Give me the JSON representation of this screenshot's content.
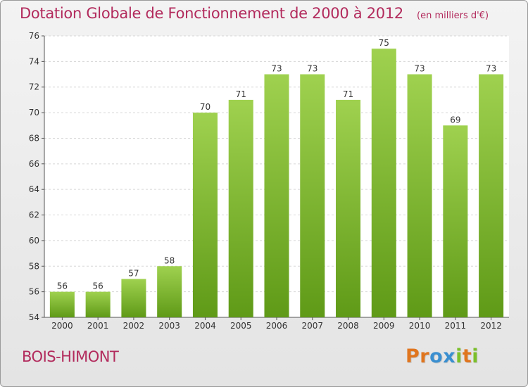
{
  "chart_data": {
    "type": "bar",
    "title": "Dotation Globale de Fonctionnement de 2000 à 2012",
    "unit": "(en milliers d'€)",
    "categories": [
      "2000",
      "2001",
      "2002",
      "2003",
      "2004",
      "2005",
      "2006",
      "2007",
      "2008",
      "2009",
      "2010",
      "2011",
      "2012"
    ],
    "values": [
      56,
      56,
      57,
      58,
      70,
      71,
      73,
      73,
      71,
      75,
      73,
      69,
      73
    ],
    "ylim": [
      54,
      76
    ],
    "yticks": [
      54,
      56,
      58,
      60,
      62,
      64,
      66,
      68,
      70,
      72,
      74,
      76
    ],
    "grid": true,
    "bar_color_top": "#9fd14f",
    "bar_color_bottom": "#5f9a17"
  },
  "place_name": "BOIS-HIMONT",
  "logo": {
    "text": "Proxiti",
    "letters": [
      {
        "ch": "P",
        "color": "#e0751e"
      },
      {
        "ch": "r",
        "color": "#e0751e"
      },
      {
        "ch": "o",
        "color": "#3a8fd0"
      },
      {
        "ch": "x",
        "color": "#3a8fd0"
      },
      {
        "ch": "i",
        "color": "#7bbf2a"
      },
      {
        "ch": "t",
        "color": "#e0751e"
      },
      {
        "ch": "i",
        "color": "#7bbf2a"
      }
    ]
  }
}
